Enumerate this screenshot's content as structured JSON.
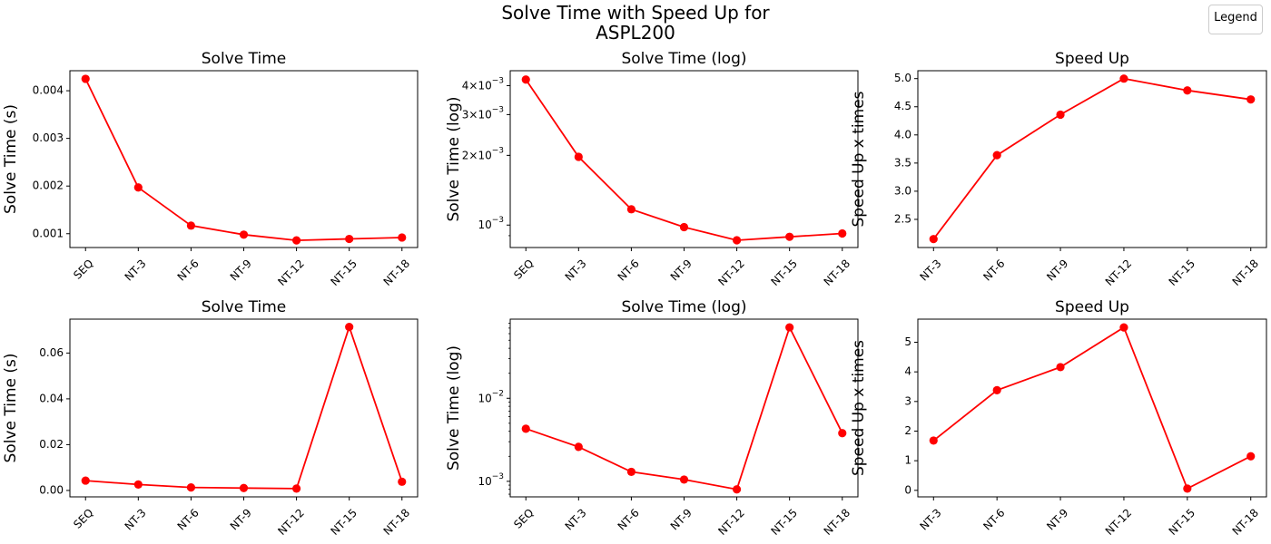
{
  "suptitle": [
    "Solve Time with Speed Up for",
    "ASPL200"
  ],
  "legend_title": "Legend",
  "colors": {
    "series": "#ff0000",
    "axis": "#000000"
  },
  "chart_data": [
    {
      "type": "line",
      "title": "Solve Time",
      "ylabel": "Solve Time (s)",
      "yscale": "linear",
      "categories": [
        "SEQ",
        "NT-3",
        "NT-6",
        "NT-9",
        "NT-12",
        "NT-15",
        "NT-18"
      ],
      "values": [
        0.00425,
        0.00197,
        0.00117,
        0.00098,
        0.00086,
        0.00089,
        0.00092
      ],
      "ylim": [
        0.00071,
        0.00442
      ],
      "yticks": [
        0.001,
        0.002,
        0.003,
        0.004
      ],
      "yticklabels": [
        "0.001",
        "0.002",
        "0.003",
        "0.004"
      ],
      "grid": false
    },
    {
      "type": "line",
      "title": "Solve Time (log)",
      "ylabel": "Solve Time (log)",
      "yscale": "log",
      "categories": [
        "SEQ",
        "NT-3",
        "NT-6",
        "NT-9",
        "NT-12",
        "NT-15",
        "NT-18"
      ],
      "values": [
        0.00425,
        0.00197,
        0.00117,
        0.00098,
        0.00086,
        0.00089,
        0.00092
      ],
      "ylim": [
        0.0008,
        0.00464
      ],
      "yticks": [
        0.001,
        0.002,
        0.003,
        0.004
      ],
      "yticklabels": [
        "10^-3",
        "2×10^-3",
        "3×10^-3",
        "4×10^-3"
      ],
      "grid": false
    },
    {
      "type": "line",
      "title": "Speed Up",
      "ylabel": "Speed Up x times",
      "yscale": "linear",
      "categories": [
        "NT-3",
        "NT-6",
        "NT-9",
        "NT-12",
        "NT-15",
        "NT-18"
      ],
      "values": [
        2.15,
        3.64,
        4.36,
        5.0,
        4.79,
        4.63
      ],
      "ylim": [
        2.0,
        5.14
      ],
      "yticks": [
        2.5,
        3.0,
        3.5,
        4.0,
        4.5,
        5.0
      ],
      "yticklabels": [
        "2.5",
        "3.0",
        "3.5",
        "4.0",
        "4.5",
        "5.0"
      ],
      "grid": false
    },
    {
      "type": "line",
      "title": "Solve Time",
      "ylabel": "Solve Time (s)",
      "yscale": "linear",
      "categories": [
        "SEQ",
        "NT-3",
        "NT-6",
        "NT-9",
        "NT-12",
        "NT-15",
        "NT-18"
      ],
      "values": [
        0.0043,
        0.0026,
        0.0013,
        0.00105,
        0.0008,
        0.0714,
        0.0038
      ],
      "ylim": [
        -0.0028,
        0.0748
      ],
      "yticks": [
        0.0,
        0.02,
        0.04,
        0.06
      ],
      "yticklabels": [
        "0.00",
        "0.02",
        "0.04",
        "0.06"
      ],
      "grid": false
    },
    {
      "type": "line",
      "title": "Solve Time (log)",
      "ylabel": "Solve Time (log)",
      "yscale": "log",
      "categories": [
        "SEQ",
        "NT-3",
        "NT-6",
        "NT-9",
        "NT-12",
        "NT-15",
        "NT-18"
      ],
      "values": [
        0.0043,
        0.0026,
        0.0013,
        0.00105,
        0.0008,
        0.0714,
        0.0038
      ],
      "ylim": [
        0.00065,
        0.0897
      ],
      "yticks": [
        0.001,
        0.01
      ],
      "yticklabels": [
        "10^-3",
        "10^-2"
      ],
      "grid": false
    },
    {
      "type": "line",
      "title": "Speed Up",
      "ylabel": "Speed Up x times",
      "yscale": "linear",
      "categories": [
        "NT-3",
        "NT-6",
        "NT-9",
        "NT-12",
        "NT-15",
        "NT-18"
      ],
      "values": [
        1.68,
        3.38,
        4.16,
        5.5,
        0.06,
        1.15
      ],
      "ylim": [
        -0.22,
        5.78
      ],
      "yticks": [
        0,
        1,
        2,
        3,
        4,
        5
      ],
      "yticklabels": [
        "0",
        "1",
        "2",
        "3",
        "4",
        "5"
      ],
      "grid": false
    }
  ]
}
